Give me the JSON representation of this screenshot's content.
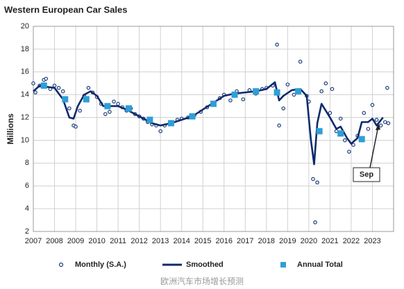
{
  "chart_data": {
    "type": "line",
    "title": "Western European Car Sales",
    "y_label": "Millions",
    "caption": "欧洲汽车市场增长预测",
    "annotation": "Sep",
    "xlim": [
      2007,
      2024
    ],
    "xticks": [
      2007,
      2008,
      2009,
      2010,
      2011,
      2012,
      2013,
      2014,
      2015,
      2016,
      2017,
      2018,
      2019,
      2020,
      2021,
      2022,
      2023
    ],
    "ylim": [
      2,
      20
    ],
    "yticks": [
      2,
      4,
      6,
      8,
      10,
      12,
      14,
      16,
      18,
      20
    ],
    "grid": true,
    "legend": "bottom",
    "series": [
      {
        "name": "Monthly (S.A.)",
        "color": "#1f3d7a",
        "kind": "marker",
        "x": [
          2007.0,
          2007.1,
          2007.3,
          2007.5,
          2007.6,
          2007.8,
          2008.0,
          2008.2,
          2008.4,
          2008.5,
          2008.7,
          2008.9,
          2009.0,
          2009.2,
          2009.4,
          2009.6,
          2009.8,
          2010.0,
          2010.2,
          2010.4,
          2010.6,
          2010.8,
          2011.0,
          2011.2,
          2011.4,
          2011.6,
          2011.8,
          2012.0,
          2012.2,
          2012.4,
          2012.6,
          2012.8,
          2013.0,
          2013.2,
          2013.5,
          2013.8,
          2014.0,
          2014.3,
          2014.6,
          2014.9,
          2015.2,
          2015.5,
          2015.8,
          2016.0,
          2016.3,
          2016.6,
          2016.9,
          2017.2,
          2017.5,
          2017.8,
          2018.0,
          2018.3,
          2018.5,
          2018.6,
          2018.8,
          2019.0,
          2019.3,
          2019.6,
          2019.9,
          2020.0,
          2020.2,
          2020.3,
          2020.4,
          2020.6,
          2020.8,
          2021.0,
          2021.1,
          2021.3,
          2021.5,
          2021.7,
          2021.9,
          2022.1,
          2022.3,
          2022.6,
          2022.8,
          2023.0,
          2023.2,
          2023.4,
          2023.6,
          2023.7,
          2023.75
        ],
        "values": [
          15.0,
          14.2,
          14.8,
          15.3,
          15.4,
          14.5,
          14.8,
          14.6,
          14.3,
          13.7,
          12.8,
          11.3,
          11.2,
          12.6,
          13.9,
          14.6,
          14.2,
          13.8,
          13.2,
          12.3,
          12.5,
          13.4,
          13.2,
          12.9,
          12.6,
          12.8,
          12.3,
          12.1,
          11.9,
          11.6,
          11.4,
          11.3,
          10.8,
          11.3,
          11.6,
          11.8,
          11.9,
          12.0,
          12.2,
          12.5,
          12.9,
          13.3,
          13.7,
          14.0,
          13.5,
          14.3,
          13.6,
          14.4,
          14.1,
          14.5,
          14.6,
          14.8,
          18.4,
          11.3,
          12.8,
          14.9,
          14.0,
          16.9,
          13.9,
          13.4,
          6.6,
          2.8,
          6.3,
          14.3,
          15.0,
          12.4,
          14.5,
          10.8,
          11.9,
          10.0,
          9.0,
          9.6,
          10.4,
          12.4,
          11.0,
          13.1,
          11.8,
          11.3,
          11.6,
          14.6,
          11.5
        ]
      },
      {
        "name": "Smoothed",
        "color": "#0d2a6b",
        "kind": "line",
        "x": [
          2007.0,
          2007.3,
          2007.6,
          2008.0,
          2008.4,
          2008.7,
          2008.9,
          2009.1,
          2009.4,
          2009.7,
          2010.0,
          2010.3,
          2010.6,
          2011.0,
          2011.4,
          2011.8,
          2012.2,
          2012.6,
          2013.0,
          2013.5,
          2014.0,
          2014.5,
          2015.0,
          2015.5,
          2016.0,
          2016.5,
          2017.0,
          2017.5,
          2018.0,
          2018.4,
          2018.6,
          2018.8,
          2019.2,
          2019.6,
          2019.9,
          2020.1,
          2020.25,
          2020.4,
          2020.6,
          2020.8,
          2021.0,
          2021.3,
          2021.5,
          2021.8,
          2022.0,
          2022.3,
          2022.5,
          2022.8,
          2023.0,
          2023.2,
          2023.5
        ],
        "values": [
          14.3,
          14.8,
          14.7,
          14.6,
          13.6,
          12.0,
          11.9,
          13.0,
          14.0,
          14.3,
          13.9,
          13.0,
          13.0,
          13.0,
          12.7,
          12.3,
          11.9,
          11.5,
          11.3,
          11.5,
          11.8,
          12.1,
          12.7,
          13.3,
          13.9,
          14.1,
          14.2,
          14.3,
          14.5,
          15.1,
          13.5,
          13.9,
          14.4,
          14.5,
          13.9,
          10.0,
          7.9,
          11.5,
          13.2,
          12.6,
          12.0,
          11.0,
          11.2,
          10.2,
          9.7,
          10.2,
          11.6,
          11.6,
          11.9,
          11.3,
          12.0
        ]
      },
      {
        "name": "Annual Total",
        "color": "#2e9fd6",
        "kind": "square",
        "x": [
          2007.5,
          2008.5,
          2009.5,
          2010.5,
          2011.5,
          2012.5,
          2013.5,
          2014.5,
          2015.5,
          2016.5,
          2017.5,
          2018.5,
          2019.5,
          2020.5,
          2021.5,
          2022.5
        ],
        "values": [
          14.8,
          13.6,
          13.6,
          13.0,
          12.8,
          11.8,
          11.5,
          12.1,
          13.2,
          14.0,
          14.3,
          14.2,
          14.3,
          10.8,
          10.6,
          10.1
        ]
      }
    ]
  }
}
